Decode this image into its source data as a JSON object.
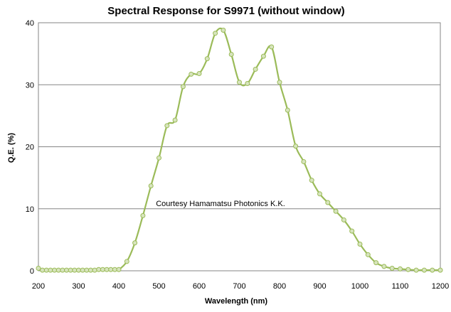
{
  "chart_data": {
    "type": "line",
    "title": "Spectral Response for S9971 (without window)",
    "xlabel": "Wavelength (nm)",
    "ylabel": "Q.E. (%)",
    "xlim": [
      200,
      1200
    ],
    "ylim": [
      0,
      40
    ],
    "x_ticks": [
      200,
      300,
      400,
      500,
      600,
      700,
      800,
      900,
      1000,
      1100,
      1200
    ],
    "y_ticks": [
      0,
      10,
      20,
      30,
      40
    ],
    "grid": "horizontal",
    "legend": "none",
    "annotation": "Courtesy Hamamatsu Photonics K.K.",
    "line_color": "#9BBB59",
    "marker_fill": "#D7E4BD",
    "series": [
      {
        "x": [
          200,
          210,
          220,
          230,
          240,
          250,
          260,
          270,
          280,
          290,
          300,
          310,
          320,
          330,
          340,
          350,
          360,
          370,
          380,
          390,
          400,
          420,
          440,
          460,
          480,
          500,
          520,
          540,
          560,
          580,
          600,
          620,
          640,
          660,
          680,
          700,
          720,
          740,
          760,
          780,
          800,
          820,
          840,
          860,
          880,
          900,
          920,
          940,
          960,
          980,
          1000,
          1020,
          1040,
          1060,
          1080,
          1100,
          1120,
          1140,
          1160,
          1180,
          1200
        ],
        "y": [
          0.4,
          0.1,
          0.1,
          0.1,
          0.1,
          0.1,
          0.1,
          0.1,
          0.1,
          0.1,
          0.1,
          0.1,
          0.1,
          0.1,
          0.1,
          0.2,
          0.2,
          0.2,
          0.2,
          0.2,
          0.2,
          1.5,
          4.5,
          8.9,
          13.7,
          18.2,
          23.4,
          24.3,
          29.7,
          31.7,
          31.8,
          34.2,
          38.3,
          38.8,
          34.9,
          30.4,
          30.2,
          32.5,
          34.6,
          36.1,
          30.4,
          25.9,
          20.1,
          17.6,
          14.6,
          12.4,
          11.0,
          9.6,
          8.2,
          6.4,
          4.3,
          2.6,
          1.3,
          0.7,
          0.4,
          0.3,
          0.2,
          0.1,
          0.1,
          0.1,
          0.1
        ]
      }
    ]
  }
}
